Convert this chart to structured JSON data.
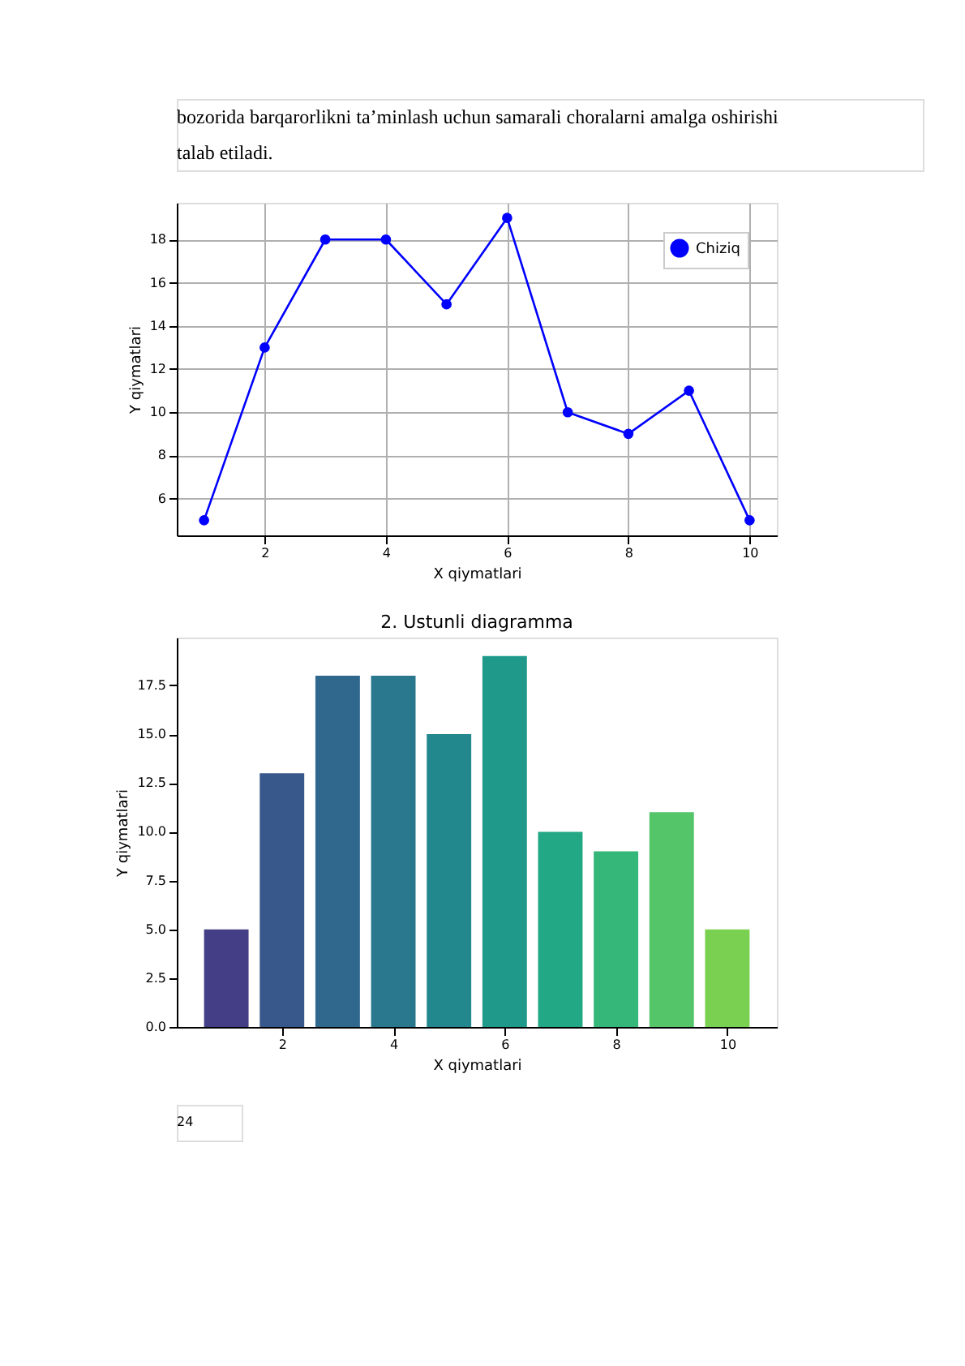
{
  "chart_data": [
    {
      "type": "line",
      "annotations": [
        "bozorida barqarorlikni ta’minlash uchun samarali choralarni amalga oshirishi talab etiladi."
      ],
      "xlabel": "X qiymatlari",
      "ylabel": "Y qiymatlari",
      "x": [
        1,
        2,
        3,
        4,
        5,
        6,
        7,
        8,
        9,
        10
      ],
      "series": [
        {
          "name": "Chiziq",
          "color": "#0000ff",
          "values": [
            5,
            13,
            18,
            18,
            15,
            19,
            10,
            9,
            11,
            5
          ]
        }
      ],
      "xlim": [
        0.55,
        10.45
      ],
      "xticks": [
        2,
        4,
        6,
        8,
        10
      ],
      "ylim": [
        4.3,
        19.7
      ],
      "yticks": [
        6,
        8,
        10,
        12,
        14,
        16,
        18
      ],
      "grid": true,
      "legend": "top right",
      "marker": "circle",
      "line_style": "solid"
    },
    {
      "type": "bar",
      "title": "2. Ustunli diagramma",
      "xlabel": "X qiymatlari",
      "ylabel": "Y qiymatlari",
      "annotations": [
        "24"
      ],
      "x": [
        1,
        2,
        3,
        4,
        5,
        6,
        7,
        8,
        9,
        10
      ],
      "values": [
        5,
        13,
        18,
        18,
        15,
        19,
        10,
        9,
        11,
        5
      ],
      "colors": [
        "#433e85",
        "#38588c",
        "#30678d",
        "#29788e",
        "#23888e",
        "#1f9a8a",
        "#22a884",
        "#35b779",
        "#54c568",
        "#7ad151"
      ],
      "xlim": [
        0.11,
        10.89
      ],
      "xticks": [
        2,
        4,
        6,
        8,
        10
      ],
      "ylim": [
        0,
        19.95
      ],
      "yticks": [
        {
          "value": 0,
          "label": "0.0"
        },
        {
          "value": 2.5,
          "label": "2.5"
        },
        {
          "value": 5,
          "label": "5.0"
        },
        {
          "value": 7.5,
          "label": "7.5"
        },
        {
          "value": 10,
          "label": "10.0"
        },
        {
          "value": 12.5,
          "label": "12.5"
        },
        {
          "value": 15,
          "label": "15.0"
        },
        {
          "value": 17.5,
          "label": "17.5"
        }
      ],
      "grid": false
    }
  ]
}
